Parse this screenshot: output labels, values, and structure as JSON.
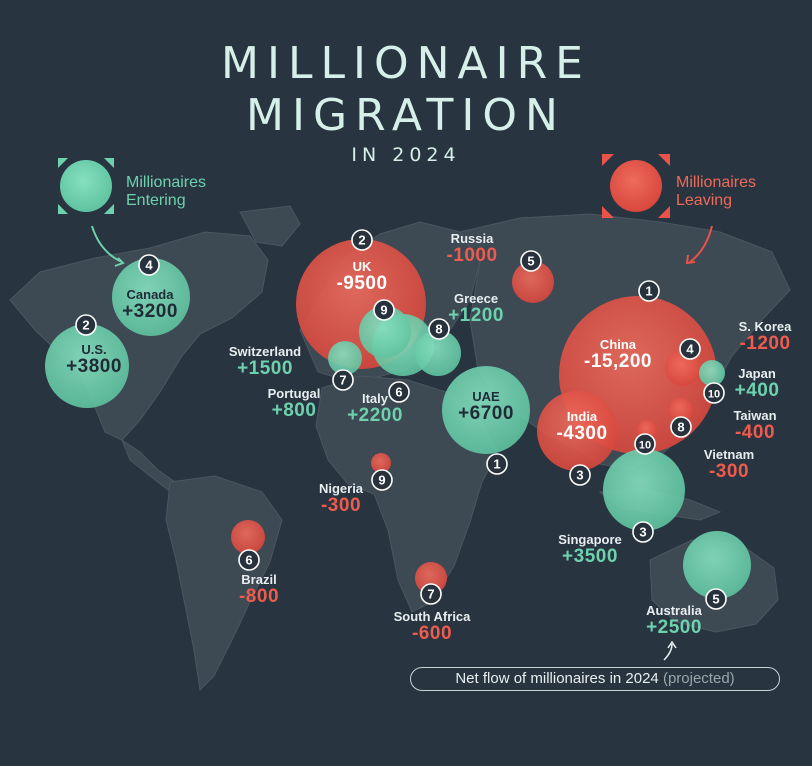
{
  "title": {
    "line1": "MILLIONAIRE",
    "line2": "MIGRATION",
    "subtitle": "IN 2024"
  },
  "legend": {
    "entering": "Millionaires Entering",
    "leaving": "Millionaires Leaving",
    "entering_color": "#6ed1ad",
    "leaving_color": "#e9534a"
  },
  "footer": {
    "main": "Net flow of millionaires in 2024",
    "note": "(projected)"
  },
  "colors": {
    "background": "#283440",
    "land": "#3d4953",
    "entering": "#6ed1ad",
    "leaving": "#e9534a"
  },
  "entering": [
    {
      "rank": "1",
      "name": "UAE",
      "value": "+6700"
    },
    {
      "rank": "2",
      "name": "U.S.",
      "value": "+3800"
    },
    {
      "rank": "3",
      "name": "Singapore",
      "value": "+3500"
    },
    {
      "rank": "4",
      "name": "Canada",
      "value": "+3200"
    },
    {
      "rank": "5",
      "name": "Australia",
      "value": "+2500"
    },
    {
      "rank": "6",
      "name": "Italy",
      "value": "+2200"
    },
    {
      "rank": "7",
      "name": "Switzerland",
      "value": "+1500"
    },
    {
      "rank": "8",
      "name": "Greece",
      "value": "+1200"
    },
    {
      "rank": "9",
      "name": "Portugal",
      "value": "+800"
    },
    {
      "rank": "10",
      "name": "Japan",
      "value": "+400"
    }
  ],
  "leaving": [
    {
      "rank": "1",
      "name": "China",
      "value": "-15,200"
    },
    {
      "rank": "2",
      "name": "UK",
      "value": "-9500"
    },
    {
      "rank": "3",
      "name": "India",
      "value": "-4300"
    },
    {
      "rank": "4",
      "name": "S. Korea",
      "value": "-1200"
    },
    {
      "rank": "5",
      "name": "Russia",
      "value": "-1000"
    },
    {
      "rank": "6",
      "name": "Brazil",
      "value": "-800"
    },
    {
      "rank": "7",
      "name": "South Africa",
      "value": "-600"
    },
    {
      "rank": "8",
      "name": "Taiwan",
      "value": "-400"
    },
    {
      "rank": "9",
      "name": "Nigeria",
      "value": "-300"
    },
    {
      "rank": "10",
      "name": "Vietnam",
      "value": "-300"
    }
  ]
}
